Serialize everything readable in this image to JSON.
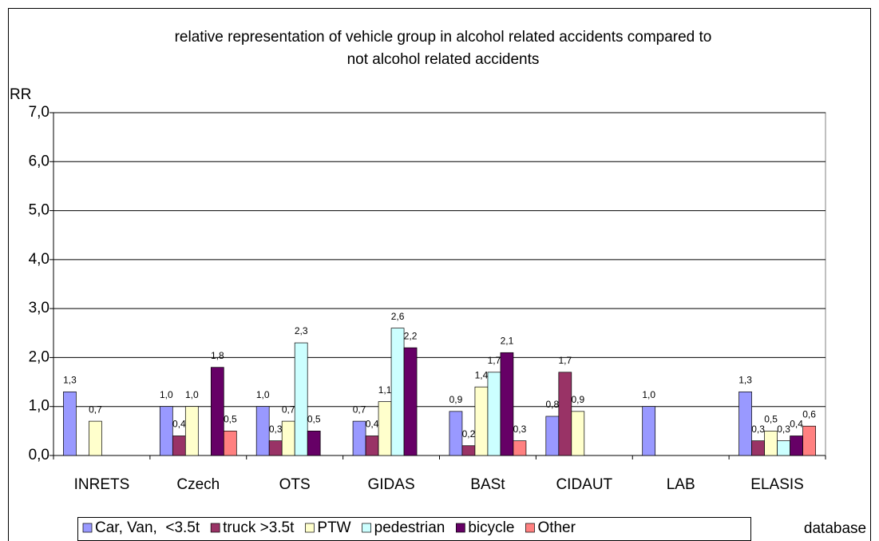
{
  "chart_data": {
    "type": "bar",
    "title": [
      "relative representation of vehicle group in alcohol related accidents compared to",
      "not alcohol related accidents"
    ],
    "y_label": "RR",
    "x_label": "database",
    "categories": [
      "INRETS",
      "Czech",
      "OTS",
      "GIDAS",
      "BASt",
      "CIDAUT",
      "LAB",
      "ELASIS"
    ],
    "series": [
      {
        "name": "Car, Van,  <3.5t",
        "color": "#9999ff",
        "values": [
          1.3,
          1.0,
          1.0,
          0.7,
          0.9,
          0.8,
          1.0,
          1.3
        ],
        "value_labels": [
          "1,3",
          "1,0",
          "1,0",
          "0,7",
          "0,9",
          "0,8",
          "1,0",
          "1,3"
        ]
      },
      {
        "name": "truck >3.5t",
        "color": "#993366",
        "values": [
          null,
          0.4,
          0.3,
          0.4,
          0.2,
          1.7,
          null,
          0.3
        ],
        "value_labels": [
          null,
          "0,4",
          "0,3",
          "0,4",
          "0,2",
          "1,7",
          null,
          "0,3"
        ]
      },
      {
        "name": "PTW",
        "color": "#ffffcc",
        "values": [
          0.7,
          1.0,
          0.7,
          1.1,
          1.4,
          0.9,
          null,
          0.5
        ],
        "value_labels": [
          "0,7",
          "1,0",
          "0,7",
          "1,1",
          "1,4",
          "0,9",
          null,
          "0,5"
        ]
      },
      {
        "name": "pedestrian",
        "color": "#ccffff",
        "values": [
          null,
          null,
          2.3,
          2.6,
          1.7,
          null,
          null,
          0.3
        ],
        "value_labels": [
          null,
          null,
          "2,3",
          "2,6",
          "1,7",
          null,
          null,
          "0,3"
        ]
      },
      {
        "name": "bicycle",
        "color": "#660066",
        "values": [
          null,
          1.8,
          0.5,
          2.2,
          2.1,
          null,
          null,
          0.4
        ],
        "value_labels": [
          null,
          "1,8",
          "0,5",
          "2,2",
          "2,1",
          null,
          null,
          "0,4"
        ]
      },
      {
        "name": "Other",
        "color": "#ff8080",
        "values": [
          null,
          0.5,
          null,
          null,
          0.3,
          null,
          null,
          0.6
        ],
        "value_labels": [
          null,
          "0,5",
          null,
          null,
          "0,3",
          null,
          null,
          "0,6"
        ]
      }
    ],
    "ylim": [
      0,
      7
    ],
    "yticks": [
      {
        "value": 0,
        "label": "0,0"
      },
      {
        "value": 1,
        "label": "1,0"
      },
      {
        "value": 2,
        "label": "2,0"
      },
      {
        "value": 3,
        "label": "3,0"
      },
      {
        "value": 4,
        "label": "4,0"
      },
      {
        "value": 5,
        "label": "5,0"
      },
      {
        "value": 6,
        "label": "6,0"
      },
      {
        "value": 7,
        "label": "7,0"
      }
    ],
    "grid": true,
    "legend": "bottom"
  }
}
